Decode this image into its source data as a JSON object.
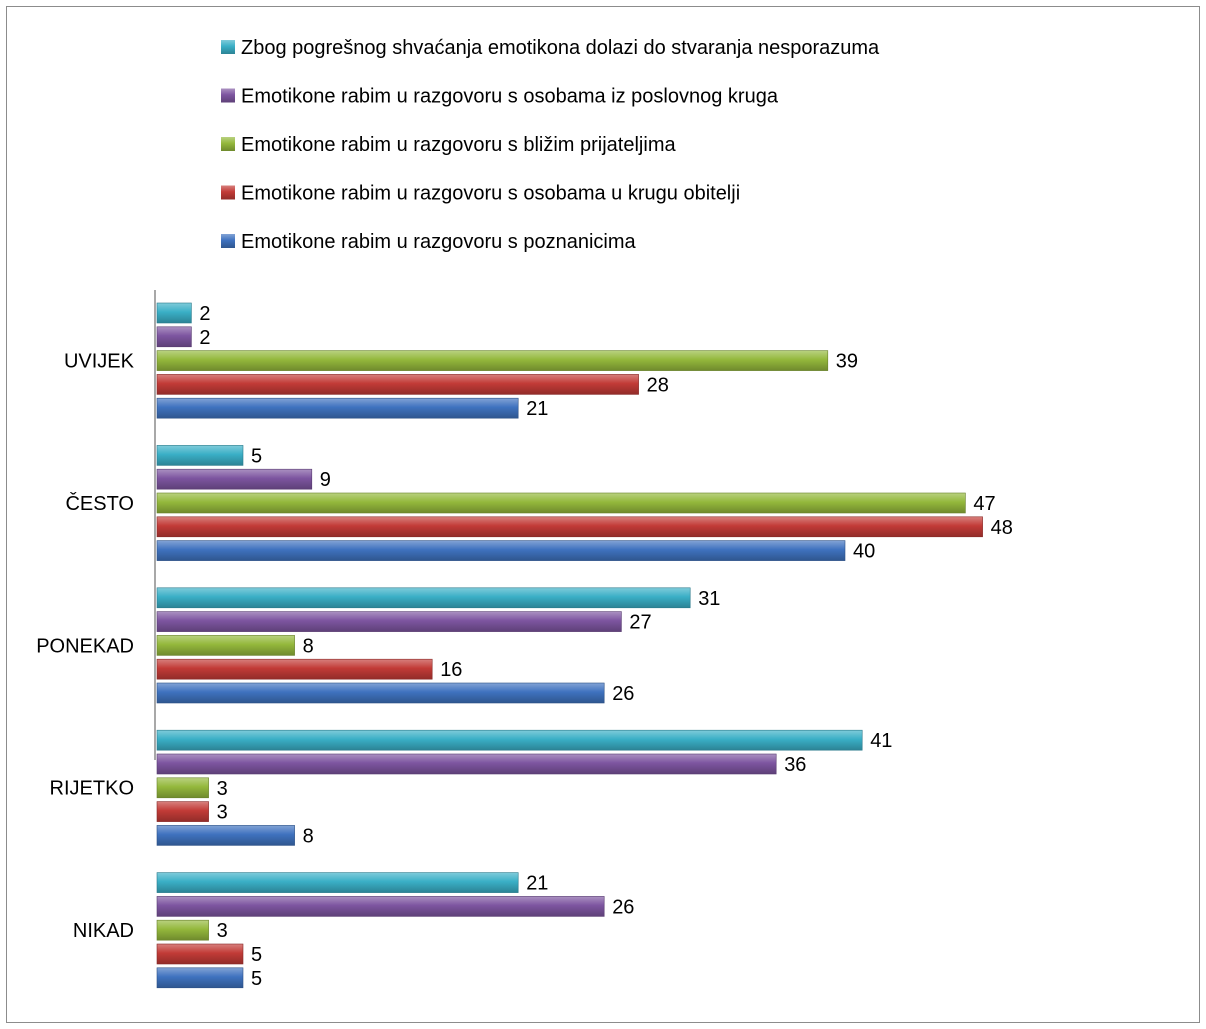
{
  "chart_data": {
    "type": "bar",
    "orientation": "horizontal",
    "categories": [
      "UVIJEK",
      "ČESTO",
      "PONEKAD",
      "RIJETKO",
      "NIKAD"
    ],
    "series": [
      {
        "name": "Zbog pogrešnog shvaćanja emotikona dolazi do stvaranja nesporazuma",
        "color": "#3aafc6",
        "values": [
          2,
          5,
          31,
          41,
          21
        ]
      },
      {
        "name": "Emotikone rabim u razgovoru s osobama iz poslovnog kruga",
        "color": "#7d55a0",
        "values": [
          2,
          9,
          27,
          36,
          26
        ]
      },
      {
        "name": "Emotikone rabim u razgovoru s bližim prijateljima",
        "color": "#94b83c",
        "values": [
          39,
          47,
          8,
          3,
          3
        ]
      },
      {
        "name": "Emotikone rabim u razgovoru s osobama u krugu obitelji",
        "color": "#c23b37",
        "values": [
          28,
          48,
          16,
          3,
          5
        ]
      },
      {
        "name": "Emotikone rabim u razgovoru s poznanicima",
        "color": "#3f72bf",
        "values": [
          21,
          40,
          26,
          8,
          5
        ]
      }
    ],
    "xlim": [
      0,
      48
    ],
    "grid": false,
    "legend_position": "top",
    "data_labels": true
  }
}
